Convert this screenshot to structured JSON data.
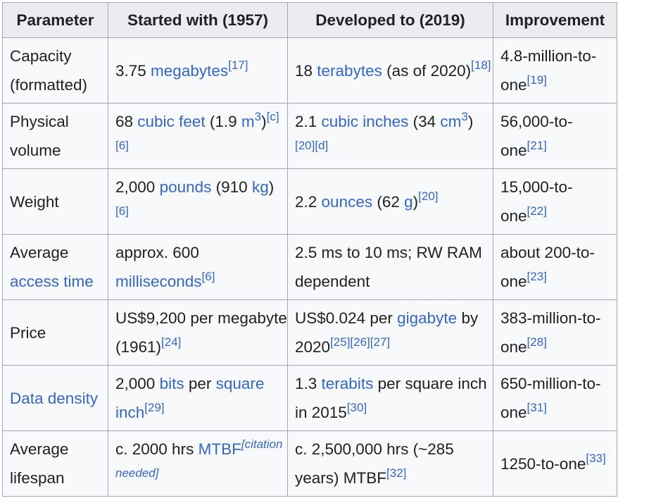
{
  "table": {
    "headers": [
      "Parameter",
      "Started with (1957)",
      "Developed to (2019)",
      "Improvement"
    ],
    "rows": [
      {
        "parameter": {
          "text": "Capacity (formatted)"
        },
        "started": {
          "pre": "3.75 ",
          "link": "megabytes",
          "ref": "[17]"
        },
        "developed": {
          "pre": "18 ",
          "link": "terabytes",
          "post": " (as of 2020)",
          "ref": "[18]"
        },
        "improvement": {
          "text": "4.8-million-to-one",
          "ref": "[19]"
        }
      },
      {
        "parameter": {
          "text": "Physical volume"
        },
        "started": {
          "pre": "68 ",
          "link": "cubic feet",
          "mid": " (1.9 ",
          "link2": "m",
          "sup": "3",
          "post": ")",
          "ref": "[c][6]"
        },
        "developed": {
          "pre": "2.1 ",
          "link": "cubic inches",
          "mid": " (34 ",
          "link2": "cm",
          "sup": "3",
          "post": ")",
          "ref": "[20][d]"
        },
        "improvement": {
          "text": "56,000-to-one",
          "ref": "[21]"
        }
      },
      {
        "parameter": {
          "text": "Weight"
        },
        "started": {
          "pre": "2,000 ",
          "link": "pounds",
          "mid": " (910 ",
          "link2": "kg",
          "post": ")",
          "ref": "[6]"
        },
        "developed": {
          "pre": "2.2 ",
          "link": "ounces",
          "mid": " (62 ",
          "link2": "g",
          "post": ")",
          "ref": "[20]"
        },
        "improvement": {
          "text": "15,000-to-one",
          "ref": "[22]"
        }
      },
      {
        "parameter": {
          "pre": "Average ",
          "link": "access time"
        },
        "started": {
          "pre": "approx. 600 ",
          "link": "milliseconds",
          "ref": "[6]"
        },
        "developed": {
          "pre": "2.5 ms to 10 ms; RW RAM dependent"
        },
        "improvement": {
          "text": "about 200-to-one",
          "ref": "[23]"
        }
      },
      {
        "parameter": {
          "text": "Price"
        },
        "started": {
          "pre": "US$9,200 per megabyte (1961)",
          "ref": "[24]"
        },
        "developed": {
          "pre": "US$0.024 per ",
          "link": "gigabyte",
          "post": " by 2020",
          "ref": "[25][26][27]"
        },
        "improvement": {
          "text": "383-million-to-one",
          "ref": "[28]"
        }
      },
      {
        "parameter": {
          "link": "Data density"
        },
        "started": {
          "pre": "2,000 ",
          "link": "bits",
          "post": " per ",
          "link2": "square inch",
          "ref": "[29]"
        },
        "developed": {
          "pre": "1.3 ",
          "link": "terabits",
          "post": " per square inch in 2015",
          "ref": "[30]"
        },
        "improvement": {
          "text": "650-million-to-one",
          "ref": "[31]"
        }
      },
      {
        "parameter": {
          "text": "Average lifespan"
        },
        "started": {
          "pre": "c. 2000 hrs ",
          "link": "MTBF",
          "cn_open": "[",
          "cn": "citation needed",
          "cn_close": "]"
        },
        "developed": {
          "pre": "c. 2,500,000 hrs (~285 years) MTBF",
          "ref": "[32]"
        },
        "improvement": {
          "text": "1250-to-one",
          "ref": "[33]"
        }
      }
    ]
  }
}
